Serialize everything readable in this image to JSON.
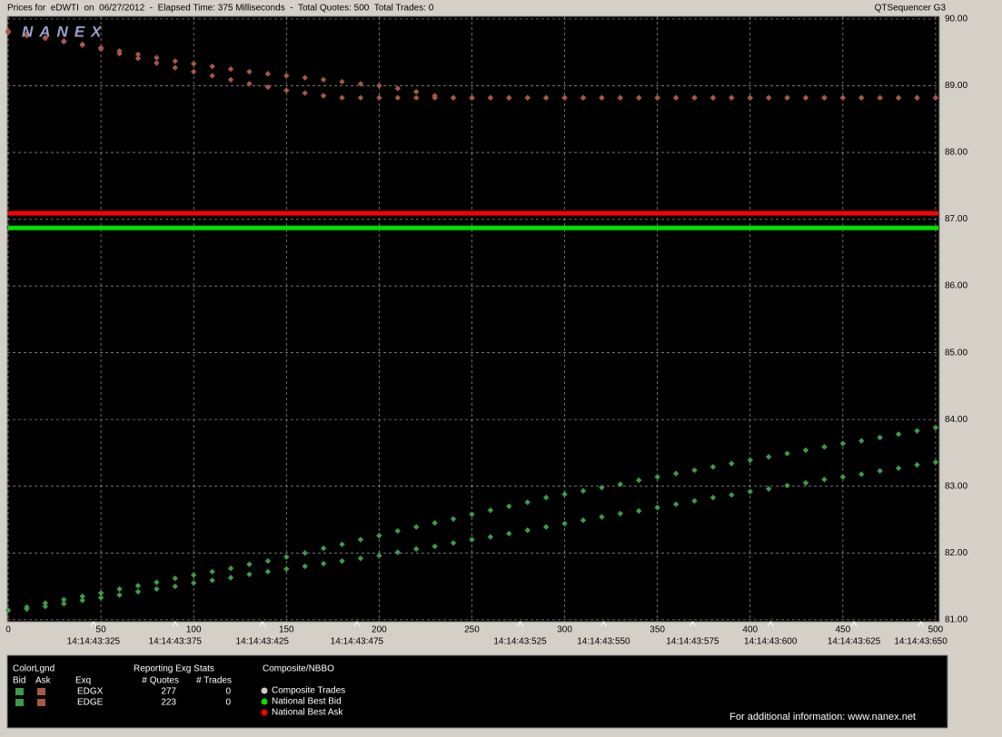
{
  "header": {
    "title": "Prices for  eDWTI  on  06/27/2012  -  Elapsed Time: 375 Milliseconds  -  Total Quotes: 500  Total Trades: 0",
    "app": "QTSequencer G3",
    "logo": "NANEX"
  },
  "chart_data": {
    "type": "scatter",
    "x": [
      0,
      10,
      20,
      30,
      40,
      50,
      60,
      70,
      80,
      90,
      100,
      110,
      120,
      130,
      140,
      150,
      160,
      170,
      180,
      190,
      200,
      210,
      220,
      230,
      240,
      250,
      260,
      270,
      280,
      290,
      300,
      310,
      320,
      330,
      340,
      350,
      360,
      370,
      380,
      390,
      400,
      410,
      420,
      430,
      440,
      450,
      460,
      470,
      480,
      490,
      500
    ],
    "xlim": [
      -0.5,
      502
    ],
    "ylim": [
      80.97,
      90.04
    ],
    "xticks": [
      0,
      50,
      100,
      150,
      200,
      250,
      300,
      350,
      400,
      450,
      500
    ],
    "time_ticks": [
      {
        "value": 46,
        "label": "14:14:43:325"
      },
      {
        "value": 90,
        "label": "14:14:43:375"
      },
      {
        "value": 137,
        "label": "14:14:43:425"
      },
      {
        "value": 188,
        "label": "14:14:43:475"
      },
      {
        "value": 276,
        "label": "14:14:43:525"
      },
      {
        "value": 321,
        "label": "14:14:43:550"
      },
      {
        "value": 369,
        "label": "14:14:43:575"
      },
      {
        "value": 411,
        "label": "14:14:43:600"
      },
      {
        "value": 456,
        "label": "14:14:43:625"
      },
      {
        "value": 492,
        "label": "14:14:43:650"
      }
    ],
    "yticks": [
      {
        "value": 81,
        "label": "81.00"
      },
      {
        "value": 82,
        "label": "82.00"
      },
      {
        "value": 83,
        "label": "83.00"
      },
      {
        "value": 84,
        "label": "84.00"
      },
      {
        "value": 85,
        "label": "85.00"
      },
      {
        "value": 86,
        "label": "86.00"
      },
      {
        "value": 87,
        "label": "87.00"
      },
      {
        "value": 88,
        "label": "88.00"
      },
      {
        "value": 89,
        "label": "89.00"
      },
      {
        "value": 90,
        "label": "90.00"
      }
    ],
    "grid": true,
    "series": [
      {
        "name": "EDGX",
        "bid_color": "#3e9b4a",
        "ask_color": "#a9564a",
        "quotes": "277",
        "trades": "0",
        "bid": [
          81.14,
          81.19,
          81.25,
          81.3,
          81.35,
          81.4,
          81.46,
          81.51,
          81.56,
          81.62,
          81.67,
          81.72,
          81.77,
          81.83,
          81.88,
          81.94,
          82.0,
          82.07,
          82.13,
          82.2,
          82.26,
          82.33,
          82.39,
          82.45,
          82.51,
          82.58,
          82.64,
          82.7,
          82.76,
          82.83,
          82.88,
          82.93,
          82.98,
          83.03,
          83.09,
          83.14,
          83.19,
          83.24,
          83.29,
          83.34,
          83.39,
          83.44,
          83.49,
          83.54,
          83.59,
          83.64,
          83.68,
          83.73,
          83.78,
          83.83,
          83.88
        ],
        "ask": [
          89.82,
          89.77,
          89.72,
          89.67,
          89.62,
          89.57,
          89.52,
          89.47,
          89.42,
          89.37,
          89.33,
          89.29,
          89.25,
          89.21,
          89.18,
          89.15,
          89.12,
          89.09,
          89.06,
          89.03,
          89.0,
          88.96,
          88.91,
          88.85,
          88.82,
          88.82,
          88.82,
          88.82,
          88.82,
          88.82,
          88.82,
          88.82,
          88.82,
          88.82,
          88.82,
          88.82,
          88.82,
          88.82,
          88.82,
          88.82,
          88.82,
          88.82,
          88.82,
          88.82,
          88.82,
          88.82,
          88.82,
          88.82,
          88.82,
          88.82,
          88.82
        ]
      },
      {
        "name": "EDGE",
        "bid_color": "#3e9b4a",
        "ask_color": "#a9564a",
        "quotes": "223",
        "trades": "0",
        "bid": [
          null,
          81.16,
          81.2,
          81.24,
          81.29,
          81.33,
          81.37,
          81.42,
          81.46,
          81.5,
          81.55,
          81.59,
          81.63,
          81.68,
          81.72,
          81.76,
          81.8,
          81.84,
          81.88,
          81.92,
          81.96,
          82.01,
          82.06,
          82.1,
          82.15,
          82.2,
          82.24,
          82.29,
          82.34,
          82.39,
          82.44,
          82.49,
          82.54,
          82.59,
          82.63,
          82.68,
          82.73,
          82.78,
          82.83,
          82.87,
          82.92,
          82.96,
          83.01,
          83.05,
          83.1,
          83.14,
          83.18,
          83.23,
          83.27,
          83.32,
          83.36
        ],
        "ask": [
          89.8,
          89.75,
          89.71,
          89.66,
          89.61,
          89.55,
          89.48,
          89.41,
          89.34,
          89.27,
          89.21,
          89.15,
          89.09,
          89.03,
          88.98,
          88.93,
          88.89,
          88.85,
          88.82,
          88.82,
          88.82,
          88.82,
          88.82,
          88.82,
          88.82,
          88.82,
          88.82,
          88.82,
          88.82,
          88.82,
          88.82,
          88.82,
          88.82,
          88.82,
          88.82,
          88.82,
          88.82,
          88.82,
          88.82,
          88.82,
          88.82,
          88.82,
          88.82,
          88.82,
          88.82,
          88.82,
          88.82,
          88.82,
          88.82,
          88.82,
          88.82
        ]
      }
    ],
    "nbbo": [
      {
        "name": "National Best Bid",
        "value": 86.87,
        "color": "#00e000"
      },
      {
        "name": "National Best Ask",
        "value": 87.09,
        "color": "#ff0000"
      }
    ],
    "composite_trades": {
      "name": "Composite Trades",
      "color": "#cccccc"
    }
  },
  "legend": {
    "title": "ColorLgnd",
    "bid": "Bid",
    "ask": "Ask",
    "exch": "Exq",
    "stats_title": "Reporting Exg Stats",
    "quotes": "# Quotes",
    "trades": "# Trades",
    "composite_title": "Composite/NBBO"
  },
  "footer": "For additional information: www.nanex.net"
}
